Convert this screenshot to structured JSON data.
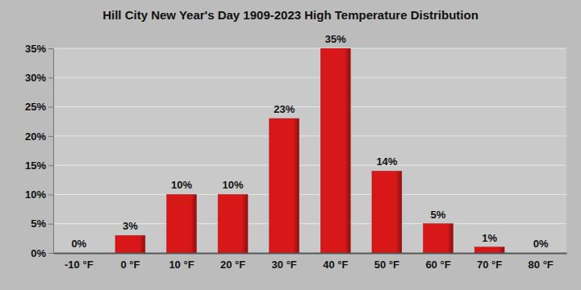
{
  "chart_data": {
    "type": "bar",
    "title": "Hill City New Year's Day 1909-2023 High Temperature Distribution",
    "categories": [
      "-10 °F",
      "0 °F",
      "10 °F",
      "20 °F",
      "30 °F",
      "40 °F",
      "50 °F",
      "60 °F",
      "70 °F",
      "80 °F"
    ],
    "values": [
      0,
      3,
      10,
      10,
      23,
      35,
      14,
      5,
      1,
      0
    ],
    "value_labels": [
      "0%",
      "3%",
      "10%",
      "10%",
      "23%",
      "35%",
      "14%",
      "5%",
      "1%",
      "0%"
    ],
    "color": "#d81818",
    "ylim": [
      0,
      35
    ],
    "yticks": [
      {
        "value": 0,
        "label": "0%"
      },
      {
        "value": 5,
        "label": "5%"
      },
      {
        "value": 10,
        "label": "10%"
      },
      {
        "value": 15,
        "label": "15%"
      },
      {
        "value": 20,
        "label": "20%"
      },
      {
        "value": 25,
        "label": "25%"
      },
      {
        "value": 30,
        "label": "30%"
      },
      {
        "value": 35,
        "label": "35%"
      }
    ],
    "grid": true,
    "data_labels": true
  }
}
